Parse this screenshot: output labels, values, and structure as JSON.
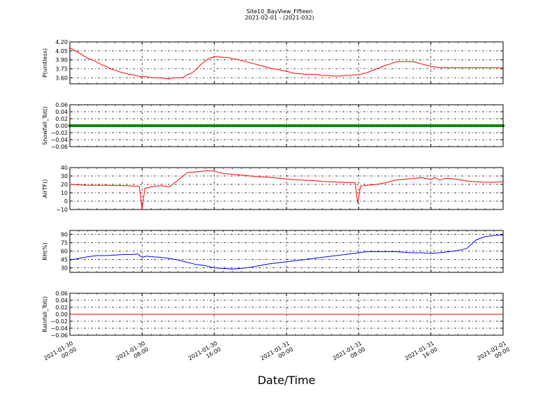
{
  "figure": {
    "title": "Site10_BayView_Fifteen",
    "subtitle": "2021-02-01 - (2021-032)",
    "xlabel": "Date/Time"
  },
  "chart_data": [
    {
      "type": "line",
      "ylabel": "P(unitless)",
      "ylim": [
        3.5,
        4.2
      ],
      "yticks": [
        3.6,
        3.75,
        3.9,
        4.05,
        4.2
      ],
      "ytick_labels": [
        "3.60",
        "3.75",
        "3.90",
        "4.05",
        "4.20"
      ],
      "grid": true,
      "color": "#ff0000",
      "x_hours": [
        0,
        0.5,
        1,
        1.5,
        2,
        2.5,
        3,
        3.5,
        4,
        4.5,
        5,
        5.5,
        6,
        6.5,
        7,
        7.5,
        8,
        8.5,
        9,
        9.5,
        10,
        10.5,
        11,
        11.5,
        12,
        12.5,
        13,
        13.5,
        14,
        14.5,
        15,
        15.5,
        16,
        16.5,
        17,
        17.5,
        18,
        18.5,
        19,
        19.5,
        20,
        20.5,
        21,
        21.5,
        22,
        22.5,
        23,
        23.5,
        24,
        24.5,
        25,
        25.5,
        26,
        26.5,
        27,
        27.5,
        28,
        28.5,
        29,
        29.5,
        30,
        30.5,
        31,
        31.5,
        32,
        32.5,
        33,
        33.5,
        34,
        34.5,
        35,
        35.5,
        36,
        36.5,
        37,
        37.5,
        38,
        38.5,
        39,
        39.5,
        40,
        40.5,
        41,
        41.5,
        42,
        42.5,
        43,
        43.5,
        44,
        44.5,
        45,
        45.5,
        46,
        46.5,
        47,
        47.5,
        48
      ],
      "values": [
        4.1,
        4.06,
        4.02,
        3.97,
        3.92,
        3.9,
        3.86,
        3.82,
        3.79,
        3.75,
        3.73,
        3.7,
        3.68,
        3.66,
        3.65,
        3.63,
        3.62,
        3.62,
        3.6,
        3.6,
        3.6,
        3.59,
        3.58,
        3.6,
        3.6,
        3.6,
        3.65,
        3.68,
        3.74,
        3.82,
        3.88,
        3.93,
        3.95,
        3.95,
        3.94,
        3.94,
        3.92,
        3.91,
        3.89,
        3.87,
        3.85,
        3.83,
        3.81,
        3.79,
        3.77,
        3.75,
        3.74,
        3.72,
        3.71,
        3.69,
        3.67,
        3.67,
        3.66,
        3.66,
        3.66,
        3.65,
        3.64,
        3.64,
        3.63,
        3.63,
        3.63,
        3.64,
        3.64,
        3.65,
        3.65,
        3.67,
        3.69,
        3.72,
        3.75,
        3.78,
        3.81,
        3.83,
        3.86,
        3.87,
        3.87,
        3.87,
        3.87,
        3.85,
        3.83,
        3.81,
        3.79,
        3.78,
        3.77,
        3.77,
        3.77,
        3.77,
        3.77,
        3.77,
        3.77,
        3.77,
        3.77,
        3.77,
        3.77,
        3.77,
        3.77,
        3.77,
        3.77
      ]
    },
    {
      "type": "scatter",
      "ylabel": "Snowfall_Tot()",
      "ylim": [
        -0.06,
        0.06
      ],
      "yticks": [
        -0.06,
        -0.04,
        -0.02,
        0.0,
        0.02,
        0.04,
        0.06
      ],
      "ytick_labels": [
        "−0.06",
        "−0.04",
        "−0.02",
        "0.00",
        "0.02",
        "0.04",
        "0.06"
      ],
      "grid": true,
      "color": "#008000",
      "x_range_hours": [
        0,
        48
      ],
      "constant_value": 0.0
    },
    {
      "type": "line",
      "ylabel": "AirTF()",
      "ylim": [
        -10,
        40
      ],
      "yticks": [
        -10,
        0,
        10,
        20,
        30,
        40
      ],
      "ytick_labels": [
        "−10",
        "0",
        "10",
        "20",
        "30",
        "40"
      ],
      "grid": true,
      "color": "#ff0000",
      "x_hours": [
        0,
        2,
        4,
        6,
        7,
        7.7,
        8,
        8.3,
        9,
        10,
        11,
        12,
        13,
        14,
        15,
        15.5,
        16,
        16.5,
        17,
        17.5,
        18,
        19,
        20,
        21,
        22,
        23,
        24,
        25,
        26,
        27,
        28,
        29,
        30,
        31.6,
        31.9,
        32.2,
        33,
        34,
        35,
        36,
        37,
        38,
        39,
        40,
        40.5,
        41,
        41.5,
        42,
        43,
        44,
        45,
        46,
        47,
        48
      ],
      "values": [
        20,
        19,
        19,
        18.5,
        18,
        17.5,
        -10,
        15,
        17,
        18.5,
        17,
        25,
        34,
        35,
        36,
        36,
        36,
        34,
        33,
        32.5,
        32,
        31,
        30,
        29,
        28.5,
        27.5,
        26.5,
        25.5,
        25,
        24.5,
        23.5,
        23,
        22.5,
        22,
        -3,
        18,
        19,
        20,
        22,
        25,
        26,
        27,
        28,
        26,
        28,
        25,
        27,
        27,
        26,
        24,
        23,
        22.5,
        22.5,
        23
      ]
    },
    {
      "type": "line",
      "ylabel": "RH(%)",
      "ylim": [
        22,
        97
      ],
      "yticks": [
        30,
        45,
        60,
        75,
        90
      ],
      "ytick_labels": [
        "30",
        "45",
        "60",
        "75",
        "90"
      ],
      "grid": true,
      "color": "#0000ff",
      "x_hours": [
        0,
        1,
        2,
        3,
        4,
        5,
        6,
        7,
        7.5,
        8,
        8.5,
        9,
        10,
        11,
        12,
        13,
        14,
        15,
        16,
        17,
        18,
        19,
        20,
        21,
        22,
        23,
        24,
        25,
        26,
        27,
        28,
        29,
        30,
        31,
        32,
        33,
        34,
        35,
        36,
        37,
        38,
        39,
        40,
        41,
        42,
        43,
        44,
        45,
        46,
        47,
        48
      ],
      "values": [
        44,
        47,
        50,
        52,
        52,
        53,
        54,
        54,
        55,
        49,
        51,
        50,
        49,
        47,
        44,
        40,
        36,
        34,
        30,
        29,
        28,
        29,
        31,
        34,
        37,
        39,
        41,
        43,
        45,
        47,
        49,
        51,
        53,
        55,
        57,
        59,
        59,
        59,
        59,
        58,
        57,
        57,
        56,
        57,
        59,
        61,
        65,
        80,
        86,
        88,
        89
      ]
    },
    {
      "type": "line",
      "ylabel": "Rainfall_Tot()",
      "ylim": [
        -0.06,
        0.06
      ],
      "yticks": [
        -0.06,
        -0.04,
        -0.02,
        0.0,
        0.02,
        0.04,
        0.06
      ],
      "ytick_labels": [
        "−0.06",
        "−0.04",
        "−0.02",
        "0.00",
        "0.02",
        "0.04",
        "0.06"
      ],
      "grid": true,
      "color": "#ff0000",
      "x_hours": [
        0,
        48
      ],
      "values": [
        0,
        0
      ]
    }
  ],
  "x_axis": {
    "range_hours": [
      0,
      48
    ],
    "ticks_hours": [
      0,
      8,
      16,
      24,
      32,
      40,
      48
    ],
    "tick_labels": [
      [
        "2021-01-30",
        "00:00"
      ],
      [
        "2021-01-30",
        "08:00"
      ],
      [
        "2021-01-30",
        "16:00"
      ],
      [
        "2021-01-31",
        "00:00"
      ],
      [
        "2021-01-31",
        "08:00"
      ],
      [
        "2021-01-31",
        "16:00"
      ],
      [
        "2021-02-01",
        "00:00"
      ]
    ]
  }
}
